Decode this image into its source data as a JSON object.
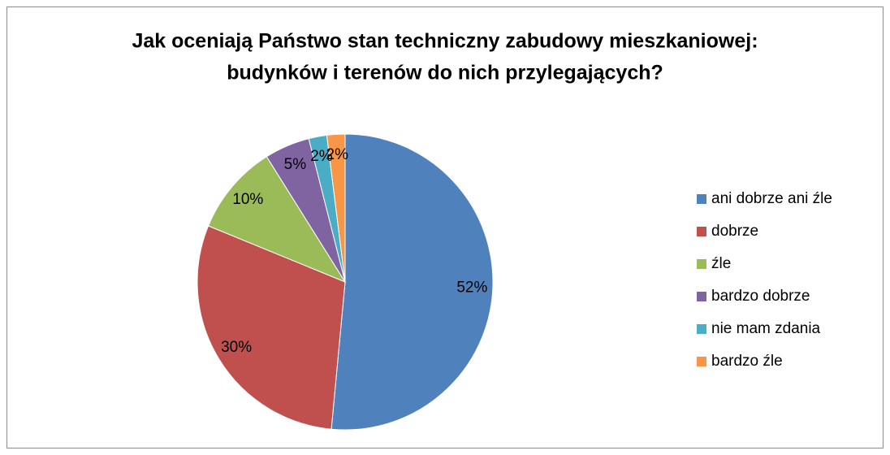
{
  "chart_data": {
    "type": "pie",
    "title": [
      "Jak oceniają Państwo stan techniczny zabudowy mieszkaniowej:",
      "budynków i terenów do nich przylegających?"
    ],
    "categories": [
      "ani dobrze ani źle",
      "dobrze",
      "źle",
      "bardzo dobrze",
      "nie mam zdania",
      "bardzo źle"
    ],
    "values": [
      52,
      30,
      10,
      5,
      2,
      2
    ],
    "value_labels": [
      "52%",
      "30%",
      "10%",
      "5%",
      "2%",
      "2%"
    ],
    "colors": [
      "#4f81bd",
      "#c0504d",
      "#9bbb59",
      "#8064a2",
      "#4bacc6",
      "#f79646"
    ],
    "legend": "right"
  }
}
